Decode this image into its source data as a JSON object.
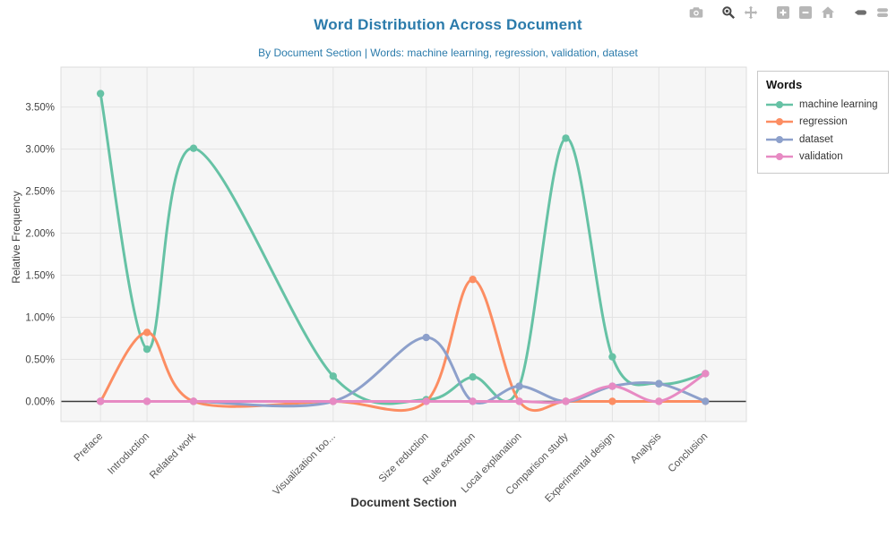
{
  "chart_data": {
    "type": "line",
    "line_shape": "spline",
    "title": "Word Distribution Across Document",
    "subtitle": "By Document Section | Words: machine learning, regression, validation, dataset",
    "xlabel": "Document Section",
    "ylabel": "Relative Frequency",
    "legend_title": "Words",
    "legend_position": "outside top-right",
    "grid": true,
    "categories": [
      "Preface",
      "Introduction",
      "Related work",
      "Visualization too...",
      "Size reduction",
      "Rule extraction",
      "Local explanation",
      "Comparison study",
      "Experimental design",
      "Analysis",
      "Conclusion"
    ],
    "x_positions": [
      0,
      1,
      2,
      5,
      7,
      8,
      9,
      10,
      11,
      12,
      13
    ],
    "x_range": [
      -0.85,
      13.88
    ],
    "y_range": [
      -0.24,
      3.975
    ],
    "y_ticks": [
      0,
      0.5,
      1.0,
      1.5,
      2.0,
      2.5,
      3.0,
      3.5
    ],
    "y_tick_suffix": "%",
    "series": [
      {
        "name": "machine learning",
        "color": "#66c2a5",
        "values": [
          3.66,
          0.62,
          3.01,
          0.3,
          0.02,
          0.29,
          0.18,
          3.13,
          0.53,
          0.21,
          0.33
        ]
      },
      {
        "name": "regression",
        "color": "#fc8d62",
        "values": [
          0,
          0.82,
          0,
          0,
          0,
          1.45,
          0,
          0,
          0,
          0,
          0
        ]
      },
      {
        "name": "dataset",
        "color": "#8da0cb",
        "values": [
          0,
          0,
          0,
          0,
          0.76,
          0,
          0.18,
          0,
          0.18,
          0.21,
          0
        ]
      },
      {
        "name": "validation",
        "color": "#e78ac3",
        "values": [
          0,
          0,
          0,
          0,
          0,
          0,
          0,
          0,
          0.18,
          0,
          0.33
        ]
      }
    ],
    "colors": {
      "title": "#2b7bab",
      "plot_bg": "#f6f6f6",
      "gridline": "#e3e3e3",
      "plot_border": "#dcdcdc",
      "zero_line": "#3a3a3a",
      "tick_text": "#444444"
    }
  },
  "modebar": {
    "icons": [
      {
        "name": "camera-icon",
        "tone": "light"
      },
      {
        "name": "zoom-icon",
        "tone": "dark",
        "group": true
      },
      {
        "name": "pan-icon",
        "tone": "light"
      },
      {
        "name": "zoom-in-icon",
        "tone": "light",
        "group": true
      },
      {
        "name": "zoom-out-icon",
        "tone": "light"
      },
      {
        "name": "home-icon",
        "tone": "light"
      },
      {
        "name": "hover-closest-icon",
        "tone": "mid",
        "group": true
      },
      {
        "name": "hover-compare-icon",
        "tone": "light"
      }
    ]
  }
}
